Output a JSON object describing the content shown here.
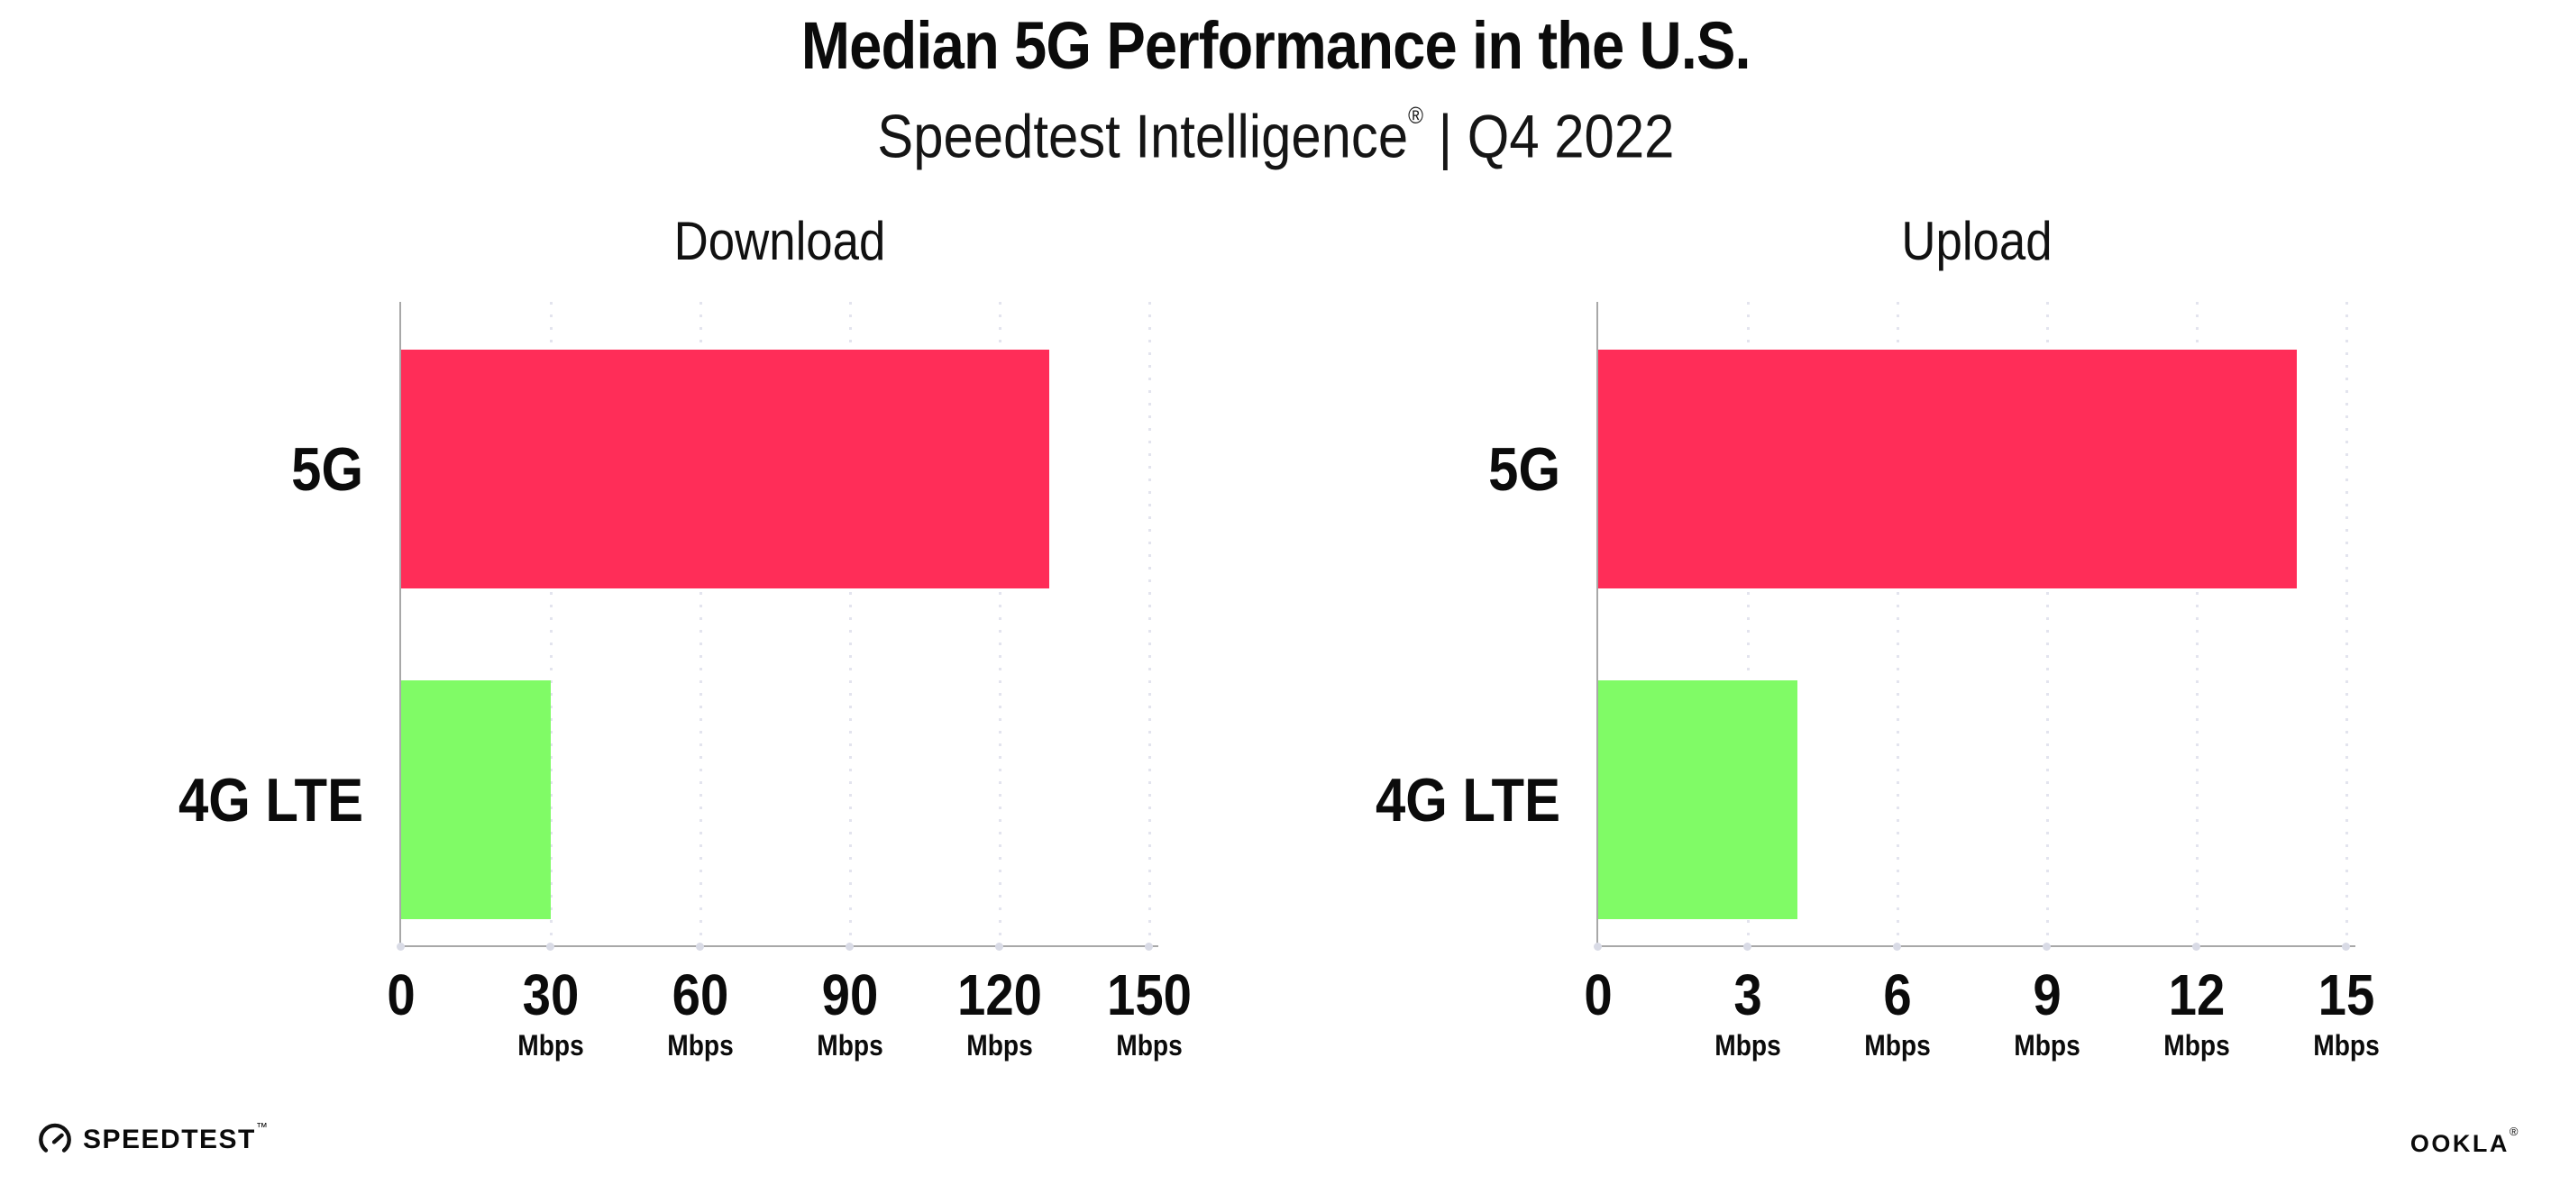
{
  "header": {
    "title": "Median 5G Performance in the U.S.",
    "subtitle_brand": "Speedtest Intelligence",
    "subtitle_reg": "®",
    "subtitle_rest": " | Q4 2022"
  },
  "chart_data": [
    {
      "type": "bar",
      "orientation": "horizontal",
      "title": "Download",
      "categories": [
        "5G",
        "4G LTE"
      ],
      "values": [
        130,
        30
      ],
      "unit": "Mbps",
      "xlabel": "",
      "ylabel": "",
      "xlim": [
        0,
        150
      ],
      "tick_step": 30,
      "ticks": [
        0,
        30,
        60,
        90,
        120,
        150
      ],
      "bar_colors": [
        "#FF2D58",
        "#80FB66"
      ],
      "grid": "dotted-vertical",
      "legend": "none"
    },
    {
      "type": "bar",
      "orientation": "horizontal",
      "title": "Upload",
      "categories": [
        "5G",
        "4G LTE"
      ],
      "values": [
        14,
        4
      ],
      "unit": "Mbps",
      "xlabel": "",
      "ylabel": "",
      "xlim": [
        0,
        15
      ],
      "tick_step": 3,
      "ticks": [
        0,
        3,
        6,
        9,
        12,
        15
      ],
      "bar_colors": [
        "#FF2D58",
        "#80FB66"
      ],
      "grid": "dotted-vertical",
      "legend": "none"
    }
  ],
  "footer": {
    "speedtest": "SPEEDTEST",
    "speedtest_mark": "™",
    "ookla": "OOKLA",
    "ookla_mark": "®"
  },
  "colors": {
    "bar_5g": "#FF2D58",
    "bar_4g_lte": "#80FB66",
    "axis_line": "#a8a8a8",
    "gridline": "#e3e4ee",
    "text": "#0b0b0b"
  }
}
